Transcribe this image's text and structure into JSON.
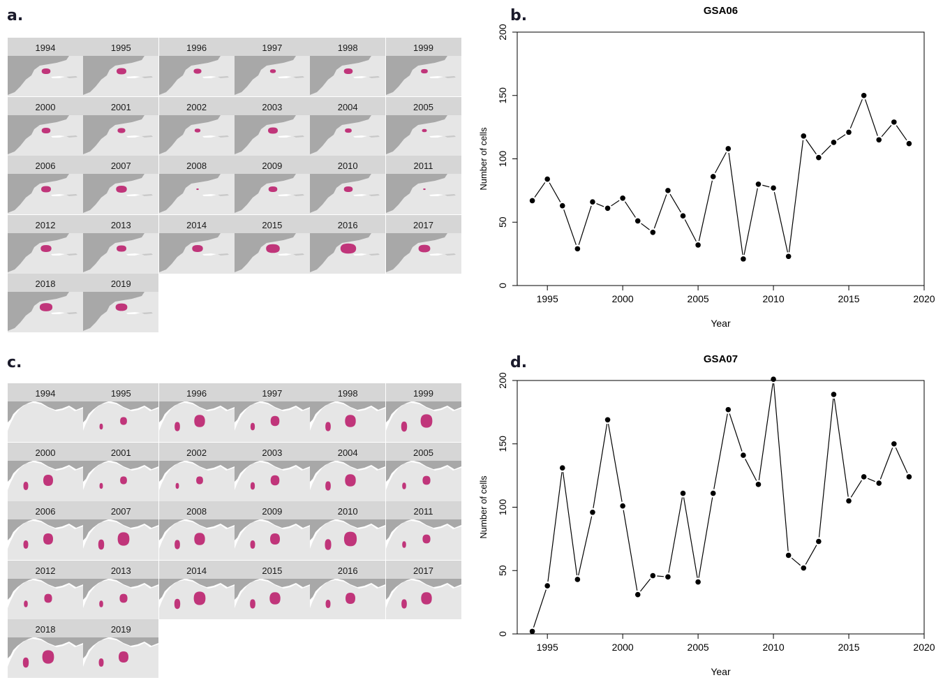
{
  "panels": {
    "a": "a.",
    "b": "b.",
    "c": "c.",
    "d": "d."
  },
  "map_years": [
    "1994",
    "1995",
    "1996",
    "1997",
    "1998",
    "1999",
    "2000",
    "2001",
    "2002",
    "2003",
    "2004",
    "2005",
    "2006",
    "2007",
    "2008",
    "2009",
    "2010",
    "2011",
    "2012",
    "2013",
    "2014",
    "2015",
    "2016",
    "2017",
    "2018",
    "2019"
  ],
  "colors": {
    "land": "#a8a8a8",
    "sea": "#e6e6e6",
    "strip": "#d6d6d6",
    "habitat": "#c0357a",
    "line": "#000000"
  },
  "chart_data": [
    {
      "type": "line",
      "title": "GSA06",
      "xlabel": "Year",
      "ylabel": "Number of cells",
      "xlim": [
        1993,
        2020
      ],
      "ylim": [
        0,
        200
      ],
      "xticks": [
        1995,
        2000,
        2005,
        2010,
        2015,
        2020
      ],
      "yticks": [
        0,
        50,
        100,
        150,
        200
      ],
      "x": [
        1994,
        1995,
        1996,
        1997,
        1998,
        1999,
        2000,
        2001,
        2002,
        2003,
        2004,
        2005,
        2006,
        2007,
        2008,
        2009,
        2010,
        2011,
        2012,
        2013,
        2014,
        2015,
        2016,
        2017,
        2018,
        2019
      ],
      "y": [
        67,
        84,
        63,
        29,
        66,
        61,
        69,
        51,
        42,
        75,
        55,
        32,
        86,
        108,
        21,
        80,
        77,
        23,
        118,
        101,
        113,
        121,
        150,
        115,
        129,
        112
      ]
    },
    {
      "type": "line",
      "title": "GSA07",
      "xlabel": "Year",
      "ylabel": "Number of cells",
      "xlim": [
        1993,
        2020
      ],
      "ylim": [
        0,
        200
      ],
      "xticks": [
        1995,
        2000,
        2005,
        2010,
        2015,
        2020
      ],
      "yticks": [
        0,
        50,
        100,
        150,
        200
      ],
      "x": [
        1994,
        1995,
        1996,
        1997,
        1998,
        1999,
        2000,
        2001,
        2002,
        2003,
        2004,
        2005,
        2006,
        2007,
        2008,
        2009,
        2010,
        2011,
        2012,
        2013,
        2014,
        2015,
        2016,
        2017,
        2018,
        2019
      ],
      "y": [
        2,
        38,
        131,
        43,
        96,
        169,
        101,
        31,
        46,
        45,
        111,
        41,
        111,
        177,
        141,
        118,
        201,
        62,
        52,
        73,
        189,
        105,
        124,
        119,
        150,
        124
      ]
    }
  ],
  "habitat_size": {
    "gsa06": [
      0.9,
      1.0,
      0.8,
      0.6,
      0.9,
      0.7,
      0.9,
      0.8,
      0.6,
      1.0,
      0.7,
      0.5,
      1.0,
      1.1,
      0.25,
      0.9,
      0.9,
      0.25,
      1.1,
      1.0,
      1.1,
      1.4,
      1.6,
      1.2,
      1.3,
      1.2
    ],
    "gsa07": [
      0.0,
      0.7,
      1.1,
      0.9,
      1.1,
      1.2,
      1.0,
      0.7,
      0.7,
      0.9,
      1.1,
      0.8,
      1.0,
      1.2,
      1.1,
      1.0,
      1.3,
      0.8,
      0.8,
      0.8,
      1.2,
      1.1,
      1.0,
      1.1,
      1.2,
      1.0
    ]
  }
}
